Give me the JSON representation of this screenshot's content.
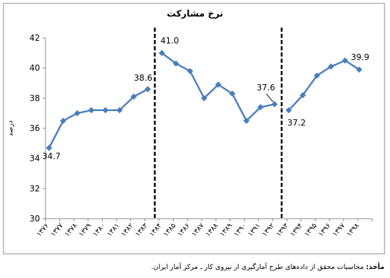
{
  "chart_data": {
    "type": "line",
    "title": "نرخ مشارکت",
    "ylabel": "درصد",
    "categories": [
      "۱۳۷۶",
      "۱۳۷۷",
      "۱۳۷۸",
      "۱۳۷۹",
      "۱۳۸۰",
      "۱۳۸۱",
      "۱۳۸۲",
      "۱۳۸۳",
      "۱۳۸۴",
      "۱۳۸۵",
      "۱۳۸۶",
      "۱۳۸۷",
      "۱۳۸۸",
      "۱۳۸۹",
      "۱۳۹۰",
      "۱۳۹۱",
      "۱۳۹۲",
      "۱۳۹۳",
      "۱۳۹۴",
      "۱۳۹۵",
      "۱۳۹۶",
      "۱۳۹۷",
      "۱۳۹۸"
    ],
    "values": [
      34.7,
      36.5,
      37.0,
      37.2,
      37.2,
      37.2,
      38.1,
      38.6,
      41.0,
      40.3,
      39.8,
      38.0,
      38.9,
      38.3,
      36.5,
      37.4,
      37.6,
      37.2,
      38.2,
      39.5,
      40.1,
      40.5,
      39.9
    ],
    "value_labels": [
      "34.7",
      null,
      null,
      null,
      null,
      null,
      null,
      "38.6",
      "41.0",
      null,
      null,
      null,
      null,
      null,
      null,
      null,
      "37.6",
      "37.2",
      null,
      null,
      null,
      null,
      "39.9"
    ],
    "color": "#4a7ebb",
    "ylim": [
      30,
      42
    ],
    "yticks": [
      30,
      32,
      34,
      36,
      38,
      40,
      42
    ],
    "breaks_after": [
      7,
      16
    ],
    "grid": false
  },
  "source_label": "مأخذ:",
  "source": "محاسبات محقق از داده‌های طرح آمارگیری از نیروی کار ـ مرکز آمار ایران."
}
